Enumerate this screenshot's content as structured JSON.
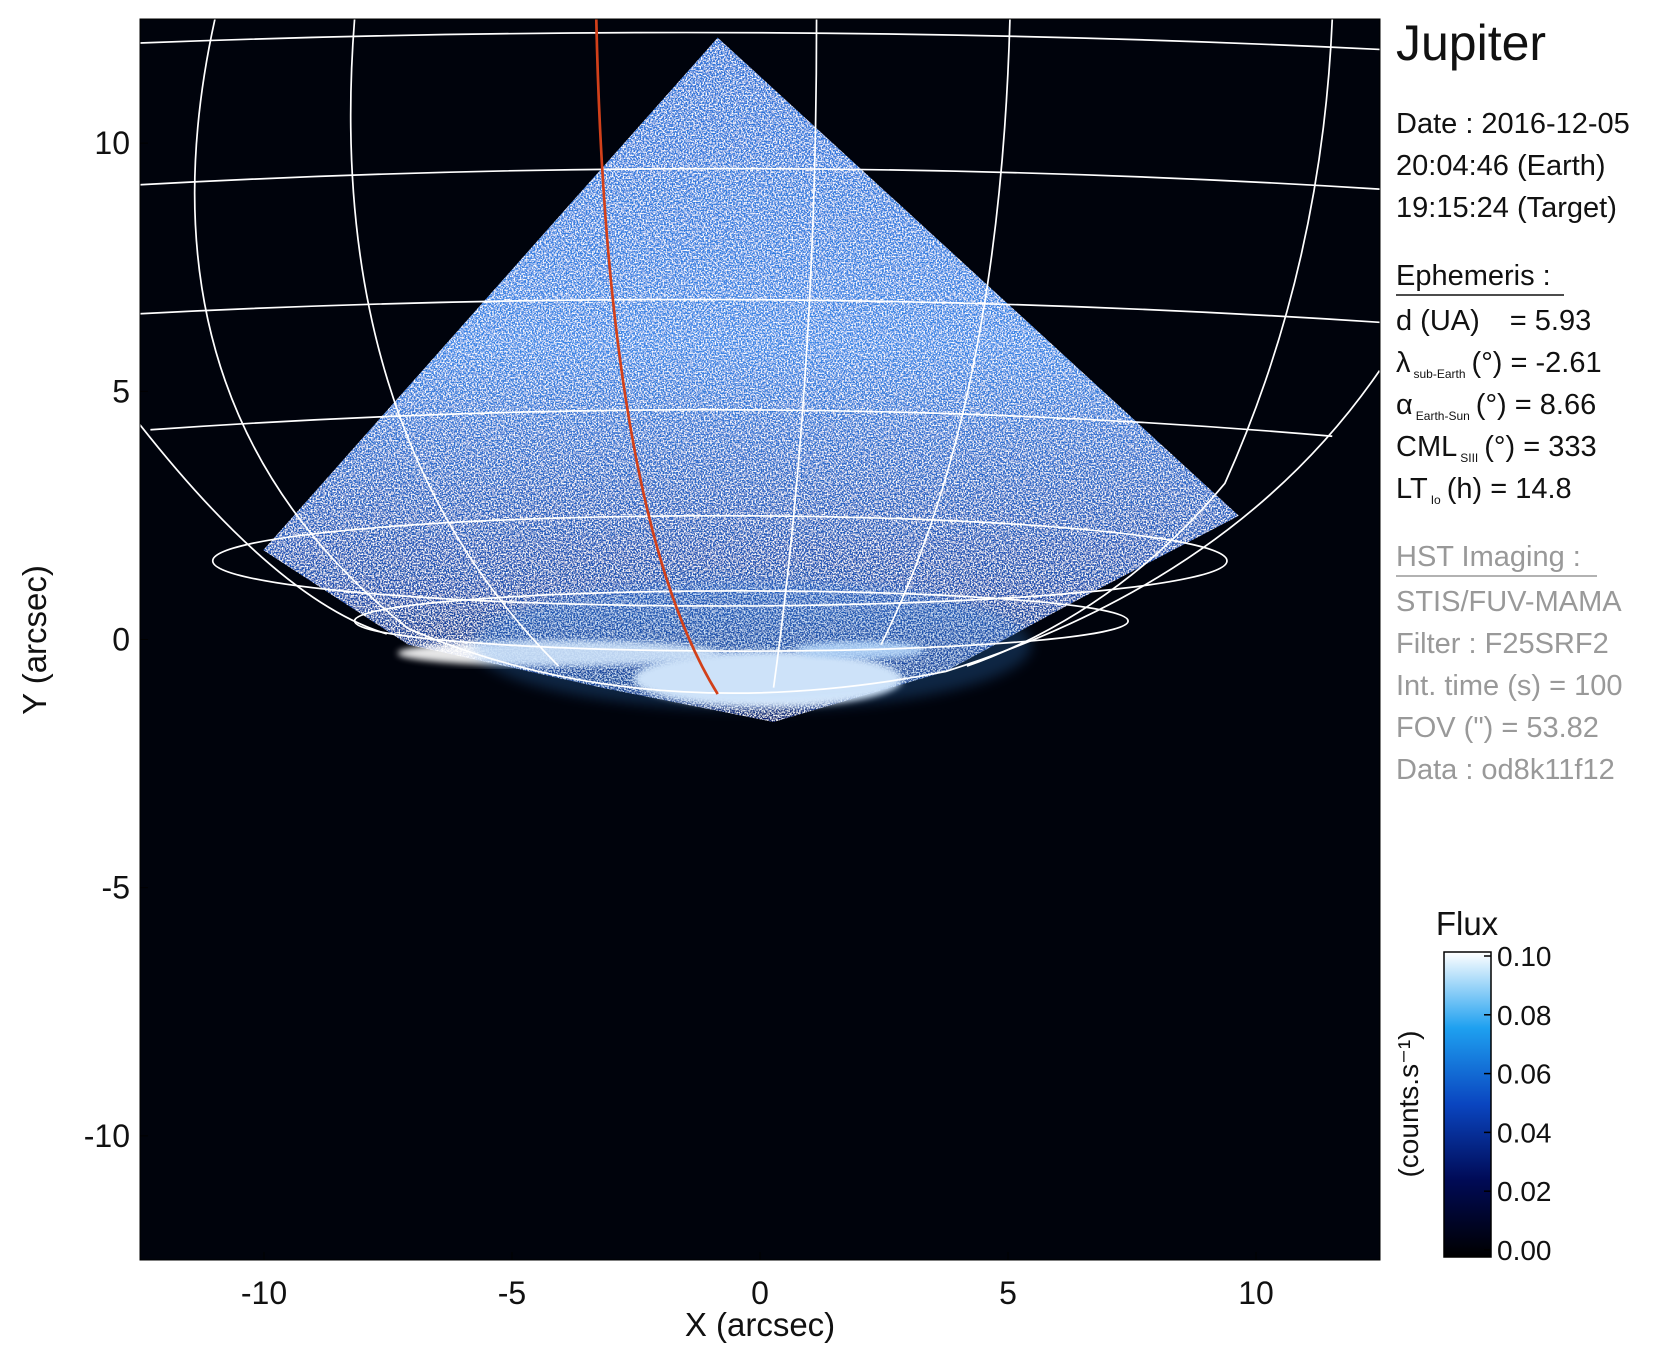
{
  "chart_data": {
    "type": "image",
    "title": "Jupiter",
    "xlabel": "X (arcsec)",
    "ylabel": "Y (arcsec)",
    "xlim": [
      -12.5,
      12.5
    ],
    "ylim": [
      -12.5,
      12.5
    ],
    "xticks": [
      -10,
      -5,
      0,
      5,
      10
    ],
    "yticks": [
      -10,
      -5,
      0,
      5,
      10
    ],
    "info": {
      "date": "Date : 2016-12-05",
      "earth_time": "20:04:46 (Earth)",
      "target_time": "19:15:24 (Target)",
      "ephemeris_title": "Ephemeris :",
      "ephemeris": [
        {
          "symbol": "d (UA)",
          "text": "= 5.93"
        },
        {
          "symbol": "λ",
          "sub": "sub-Earth",
          "text": "(°) = -2.61"
        },
        {
          "symbol": "α",
          "sub": "Earth-Sun",
          "text": "(°) = 8.66"
        },
        {
          "symbol": "CML",
          "sub": "SIII",
          "text": "(°) = 333"
        },
        {
          "symbol": "LT",
          "sub": "Io",
          "text": "(h) = 14.8"
        }
      ],
      "hst_title": "HST Imaging :",
      "hst": [
        "STIS/FUV-MAMA",
        "Filter : F25SRF2",
        "Int. time (s) = 100",
        "FOV (\") = 53.82",
        "Data : od8k11f12"
      ]
    },
    "colorbar": {
      "title": "Flux",
      "label": "(counts.s⁻¹)",
      "clim": [
        0,
        0.1
      ],
      "ticks": [
        {
          "value": 0.1,
          "label": "0.10"
        },
        0.08,
        0.06,
        0.04,
        0.02,
        {
          "value": 0,
          "label": "0.00"
        }
      ]
    }
  }
}
